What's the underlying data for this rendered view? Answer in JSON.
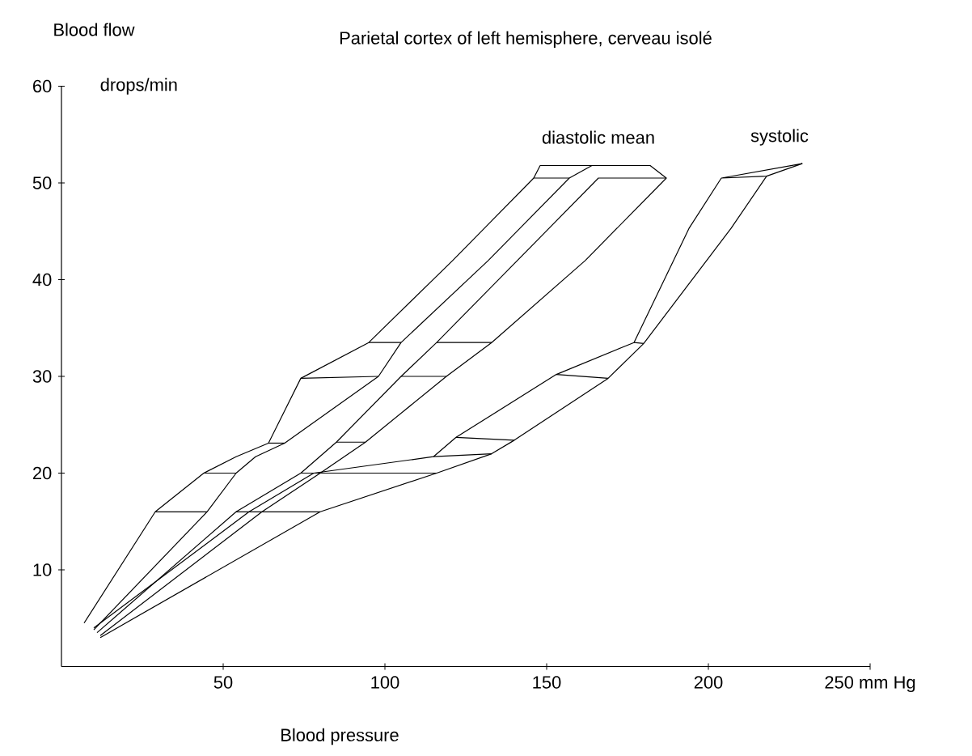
{
  "chart_data": {
    "type": "line",
    "title": "Parietal cortex of left hemisphere, cerveau isolé",
    "xlabel": "Blood pressure",
    "ylabel": "Blood flow",
    "annotations": [
      "drops/min",
      "diastolic mean",
      "systolic"
    ],
    "xlim": [
      0,
      250
    ],
    "ylim": [
      0,
      60
    ],
    "xticks": [
      50,
      100,
      150,
      200,
      {
        "value": 250,
        "label": "250 mm Hg"
      }
    ],
    "yticks": [
      10,
      20,
      30,
      40,
      50,
      60
    ],
    "grid": false,
    "marker": "none",
    "line_style": "solid",
    "series": [
      {
        "color": "#000000",
        "x": [
          7,
          29,
          44,
          54,
          64,
          74,
          95,
          121,
          146,
          148,
          164,
          157,
          146
        ],
        "values": [
          4.5,
          16,
          20,
          21.7,
          23.1,
          29.8,
          33.5,
          42,
          50.5,
          51.8,
          51.8,
          50.5,
          50.5
        ]
      },
      {
        "color": "#000000",
        "x": [
          10,
          45,
          54,
          60,
          69,
          98,
          105,
          132,
          157
        ],
        "values": [
          3.8,
          16,
          20,
          21.7,
          23.1,
          30,
          33.5,
          42,
          50.5
        ]
      },
      {
        "color": "#000000",
        "x": [
          11,
          54,
          74,
          85,
          105,
          116,
          141,
          166,
          187
        ],
        "values": [
          3.5,
          16,
          20,
          23.2,
          30,
          33.5,
          42,
          50.5,
          50.5
        ]
      },
      {
        "color": "#000000",
        "x": [
          12,
          62,
          80,
          94,
          119,
          133,
          162,
          187,
          182,
          164
        ],
        "values": [
          3.2,
          16,
          20,
          23.2,
          30,
          33.5,
          42,
          50.5,
          51.8,
          51.8
        ]
      },
      {
        "color": "#000000",
        "x": [
          10,
          58,
          78,
          115,
          122,
          153,
          177,
          194,
          204,
          218,
          229,
          204
        ],
        "values": [
          4,
          16,
          20,
          21.7,
          23.7,
          30.2,
          33.5,
          45.3,
          50.5,
          50.7,
          52,
          50.5
        ]
      },
      {
        "color": "#000000",
        "x": [
          12,
          80,
          116,
          133,
          140,
          169,
          180,
          207,
          218
        ],
        "values": [
          3,
          16,
          20,
          22,
          23.4,
          29.8,
          33.4,
          45.3,
          50.7
        ]
      },
      {
        "color": "#000000",
        "x": [
          29,
          45
        ],
        "values": [
          16,
          16
        ]
      },
      {
        "color": "#000000",
        "x": [
          44,
          54
        ],
        "values": [
          20,
          20
        ]
      },
      {
        "color": "#000000",
        "x": [
          64,
          69
        ],
        "values": [
          23.1,
          23.1
        ]
      },
      {
        "color": "#000000",
        "x": [
          74,
          98
        ],
        "values": [
          29.8,
          30
        ]
      },
      {
        "color": "#000000",
        "x": [
          95,
          105
        ],
        "values": [
          33.5,
          33.5
        ]
      },
      {
        "color": "#000000",
        "x": [
          54,
          58,
          80
        ],
        "values": [
          16,
          16,
          16
        ]
      },
      {
        "color": "#000000",
        "x": [
          74,
          78,
          116
        ],
        "values": [
          20,
          20,
          20
        ]
      },
      {
        "color": "#000000",
        "x": [
          85,
          94
        ],
        "values": [
          23.2,
          23.2
        ]
      },
      {
        "color": "#000000",
        "x": [
          105,
          119
        ],
        "values": [
          30,
          30
        ]
      },
      {
        "color": "#000000",
        "x": [
          116,
          133
        ],
        "values": [
          33.5,
          33.5
        ]
      },
      {
        "color": "#000000",
        "x": [
          115,
          133
        ],
        "values": [
          21.7,
          22
        ]
      },
      {
        "color": "#000000",
        "x": [
          122,
          140
        ],
        "values": [
          23.7,
          23.4
        ]
      },
      {
        "color": "#000000",
        "x": [
          153,
          169
        ],
        "values": [
          30.2,
          29.8
        ]
      },
      {
        "color": "#000000",
        "x": [
          177,
          180
        ],
        "values": [
          33.5,
          33.4
        ]
      }
    ]
  }
}
